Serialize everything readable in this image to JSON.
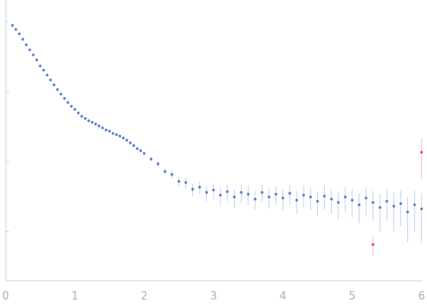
{
  "chart_data": {
    "type": "scatter",
    "log": "y",
    "grid": false,
    "tick_labels": "x",
    "xlim": [
      0,
      6
    ],
    "xticks": [
      0,
      1,
      2,
      3,
      4,
      5,
      6
    ],
    "ylim": [
      0.0002,
      2
    ],
    "yticks": [
      0.001,
      0.01,
      0.1,
      1
    ],
    "series": [
      {
        "color": "#3a66c4",
        "x": [
          0.1,
          0.15,
          0.2,
          0.25,
          0.3,
          0.35,
          0.4,
          0.45,
          0.5,
          0.55,
          0.6,
          0.65,
          0.7,
          0.75,
          0.8,
          0.85,
          0.9,
          0.95,
          1.0,
          1.05,
          1.1,
          1.15,
          1.2,
          1.25,
          1.3,
          1.35,
          1.4,
          1.45,
          1.5,
          1.55,
          1.6,
          1.65,
          1.7,
          1.75,
          1.8,
          1.85,
          1.9,
          1.95,
          2.0,
          2.1,
          2.2,
          2.3,
          2.4,
          2.5,
          2.6,
          2.7,
          2.8,
          2.9,
          3.0,
          3.1,
          3.2,
          3.3,
          3.4,
          3.5,
          3.6,
          3.7,
          3.8,
          3.9,
          4.0,
          4.1,
          4.2,
          4.3,
          4.4,
          4.5,
          4.6,
          4.7,
          4.8,
          4.9,
          5.0,
          5.1,
          5.2,
          5.3,
          5.4,
          5.5,
          5.6,
          5.7,
          5.8,
          5.9,
          6.0
        ],
        "values": [
          0.87,
          0.76,
          0.66,
          0.55,
          0.46,
          0.39,
          0.33,
          0.28,
          0.23,
          0.2,
          0.17,
          0.145,
          0.123,
          0.106,
          0.091,
          0.079,
          0.069,
          0.061,
          0.055,
          0.049,
          0.044,
          0.041,
          0.038,
          0.036,
          0.034,
          0.032,
          0.03,
          0.028,
          0.027,
          0.025,
          0.024,
          0.023,
          0.0216,
          0.02,
          0.0183,
          0.0168,
          0.0152,
          0.0142,
          0.013,
          0.0108,
          0.0092,
          0.0072,
          0.0065,
          0.0052,
          0.005,
          0.004,
          0.0043,
          0.0036,
          0.0039,
          0.0033,
          0.0037,
          0.0031,
          0.0036,
          0.0034,
          0.0029,
          0.0036,
          0.0031,
          0.0034,
          0.003,
          0.0035,
          0.0028,
          0.0033,
          0.0031,
          0.0027,
          0.0032,
          0.0029,
          0.0026,
          0.0031,
          0.0028,
          0.0024,
          0.003,
          0.0026,
          0.0022,
          0.0027,
          0.0023,
          0.0025,
          0.0019,
          0.0024,
          0.0021
        ],
        "errors": [
          0.02,
          0.012,
          0.01,
          0.008,
          0.006,
          0.005,
          0.004,
          0.0035,
          0.003,
          0.0025,
          0.002,
          0.0018,
          0.0016,
          0.0014,
          0.0012,
          0.0011,
          0.001,
          0.0009,
          0.0009,
          0.0009,
          0.0008,
          0.0008,
          0.0008,
          0.0008,
          0.0008,
          0.0008,
          0.0008,
          0.0008,
          0.0008,
          0.0008,
          0.0008,
          0.0008,
          0.0008,
          0.0008,
          0.0008,
          0.0008,
          0.0008,
          0.0008,
          0.0008,
          0.0008,
          0.0008,
          0.0008,
          0.0008,
          0.0008,
          0.0008,
          0.0008,
          0.0009,
          0.0009,
          0.001,
          0.0009,
          0.001,
          0.0009,
          0.001,
          0.001,
          0.0009,
          0.001,
          0.001,
          0.001,
          0.001,
          0.0011,
          0.001,
          0.0011,
          0.0011,
          0.001,
          0.0012,
          0.0011,
          0.0011,
          0.0012,
          0.0012,
          0.0011,
          0.0013,
          0.0012,
          0.0012,
          0.0013,
          0.0013,
          0.0013,
          0.0012,
          0.0014,
          0.0014
        ]
      },
      {
        "color": "#e0302a",
        "x": [
          5.3,
          6.0
        ],
        "values": [
          0.00065,
          0.0135
        ],
        "errors": [
          0.0002,
          0.008
        ]
      }
    ]
  }
}
